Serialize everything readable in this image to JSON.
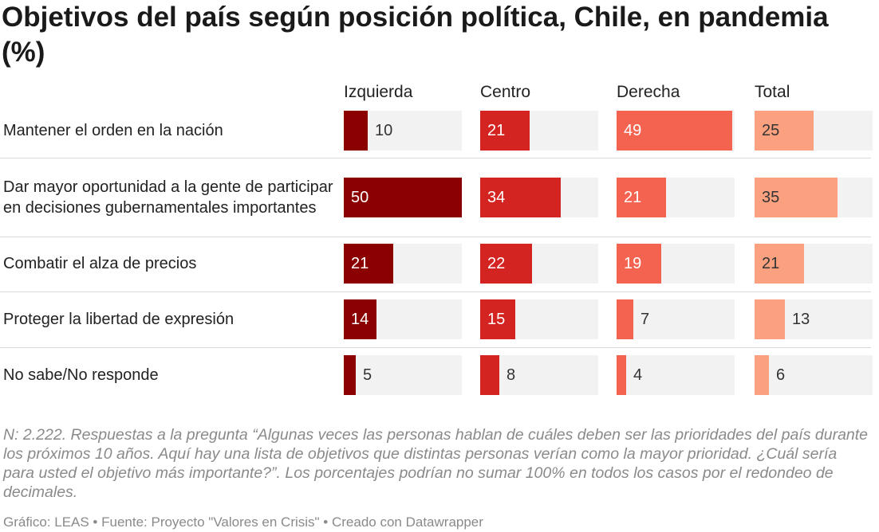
{
  "title": "Objetivos del país según posición política, Chile, en pandemia (%)",
  "chart_data": {
    "type": "bar",
    "columns": [
      "Izquierda",
      "Centro",
      "Derecha",
      "Total"
    ],
    "column_colors": [
      "#8b0000",
      "#d42422",
      "#f4634f",
      "#fca180"
    ],
    "xlim": [
      0,
      50
    ],
    "categories": [
      "Mantener el orden en la nación",
      "Dar mayor oportunidad a la gente de participar en decisiones gubernamentales importantes",
      "Combatir el alza de precios",
      "Proteger la libertad de expresión",
      "No sabe/No responde"
    ],
    "series": [
      {
        "name": "Izquierda",
        "values": [
          10,
          50,
          21,
          14,
          5
        ]
      },
      {
        "name": "Centro",
        "values": [
          21,
          34,
          22,
          15,
          8
        ]
      },
      {
        "name": "Derecha",
        "values": [
          49,
          21,
          19,
          7,
          4
        ]
      },
      {
        "name": "Total",
        "values": [
          25,
          35,
          21,
          13,
          6
        ]
      }
    ]
  },
  "note": "N: 2.222. Respuestas a la pregunta “Algunas veces las personas hablan de cuáles deben ser las prioridades del país durante los próximos 10 años. Aquí hay una lista de objetivos que distintas personas verían como la mayor prioridad. ¿Cuál sería para usted el objetivo más importante?”. Los porcentajes podrían no sumar 100% en todos los casos por el redondeo de decimales.",
  "footer": "Gráfico: LEAS • Fuente: Proyecto \"Valores en Crisis\" • Creado con Datawrapper"
}
